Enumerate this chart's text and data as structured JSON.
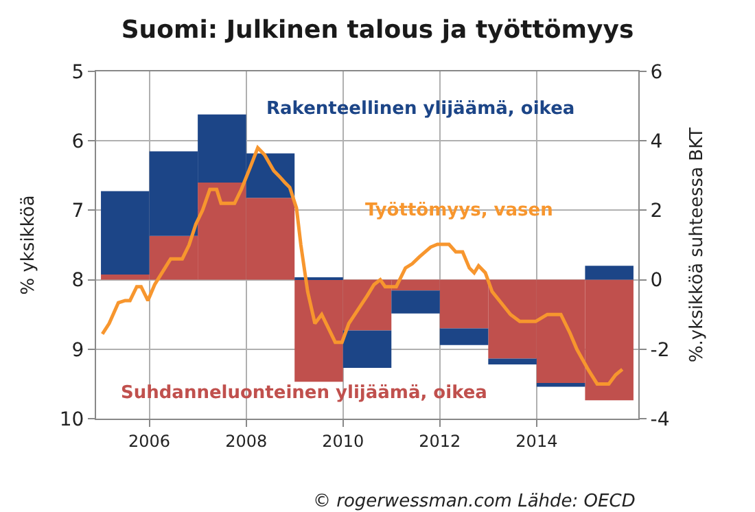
{
  "chart_data": {
    "type": "bar",
    "title": "Suomi: Julkinen talous ja työttömyys",
    "ylabel": "% yksikköä",
    "y2label": "%.yksikköä suhteessa BKT",
    "stacked": true,
    "legend": false,
    "grid": true,
    "xlim": [
      2004.9,
      2016.1
    ],
    "xticks": [
      2006,
      2008,
      2010,
      2012,
      2014
    ],
    "ylim": [
      10,
      5
    ],
    "yticks": [
      5,
      6,
      7,
      8,
      9,
      10
    ],
    "y2lim": [
      -4,
      6
    ],
    "y2ticks": [
      -4,
      -2,
      0,
      2,
      4,
      6
    ],
    "annotations": [
      "© rogerwessman.com Lähde: OECD"
    ],
    "series": [
      {
        "name": "Suhdanneluonteinen ylijäämä, oikea",
        "axis": "y2",
        "color": "#c0504d",
        "x": [
          2005.5,
          2006.5,
          2007.5,
          2008.5,
          2009.5,
          2010.5,
          2011.5,
          2012.5,
          2013.5,
          2014.5,
          2015.5
        ],
        "values": [
          0.15,
          1.26,
          2.8,
          2.36,
          -2.94,
          -1.46,
          -0.31,
          -1.4,
          -2.27,
          -2.97,
          -3.47
        ]
      },
      {
        "name": "Rakenteellinen ylijäämä, oikea",
        "axis": "y2",
        "color": "#1c4587",
        "x": [
          2005.5,
          2006.5,
          2007.5,
          2008.5,
          2009.5,
          2010.5,
          2011.5,
          2012.5,
          2013.5,
          2014.5,
          2015.5
        ],
        "values": [
          2.4,
          2.44,
          1.96,
          1.28,
          0.05,
          -1.08,
          -0.66,
          -0.48,
          -0.17,
          -0.11,
          0.4
        ]
      },
      {
        "name": "Työttömyys, vasen",
        "type": "line",
        "color": "#f7962e",
        "x": [
          2005.03,
          2005.17,
          2005.36,
          2005.5,
          2005.6,
          2005.74,
          2005.83,
          2005.97,
          2006.11,
          2006.35,
          2006.44,
          2006.68,
          2006.82,
          2006.96,
          2007.1,
          2007.25,
          2007.39,
          2007.48,
          2007.76,
          2007.9,
          2008.09,
          2008.24,
          2008.38,
          2008.57,
          2008.71,
          2008.8,
          2008.9,
          2009.04,
          2009.13,
          2009.27,
          2009.42,
          2009.56,
          2009.7,
          2009.84,
          2009.98,
          2010.12,
          2010.31,
          2010.5,
          2010.64,
          2010.77,
          2010.87,
          2011.1,
          2011.29,
          2011.43,
          2011.58,
          2011.81,
          2011.95,
          2012.19,
          2012.33,
          2012.47,
          2012.61,
          2012.71,
          2012.8,
          2012.94,
          2013.08,
          2013.23,
          2013.46,
          2013.65,
          2013.98,
          2014.22,
          2014.5,
          2014.69,
          2014.83,
          2015.07,
          2015.25,
          2015.49,
          2015.63,
          2015.77
        ],
        "values": [
          8.78,
          8.63,
          8.33,
          8.3,
          8.3,
          8.1,
          8.1,
          8.3,
          8.07,
          7.8,
          7.7,
          7.7,
          7.5,
          7.2,
          7.0,
          6.7,
          6.7,
          6.9,
          6.9,
          6.7,
          6.37,
          6.1,
          6.2,
          6.43,
          6.53,
          6.6,
          6.67,
          6.97,
          7.5,
          8.17,
          8.63,
          8.5,
          8.7,
          8.9,
          8.9,
          8.63,
          8.43,
          8.23,
          8.07,
          8.0,
          8.1,
          8.1,
          7.83,
          7.77,
          7.67,
          7.53,
          7.49,
          7.49,
          7.6,
          7.6,
          7.83,
          7.9,
          7.8,
          7.9,
          8.17,
          8.3,
          8.5,
          8.6,
          8.6,
          8.5,
          8.5,
          8.77,
          9.0,
          9.3,
          9.5,
          9.5,
          9.37,
          9.29
        ]
      }
    ]
  }
}
